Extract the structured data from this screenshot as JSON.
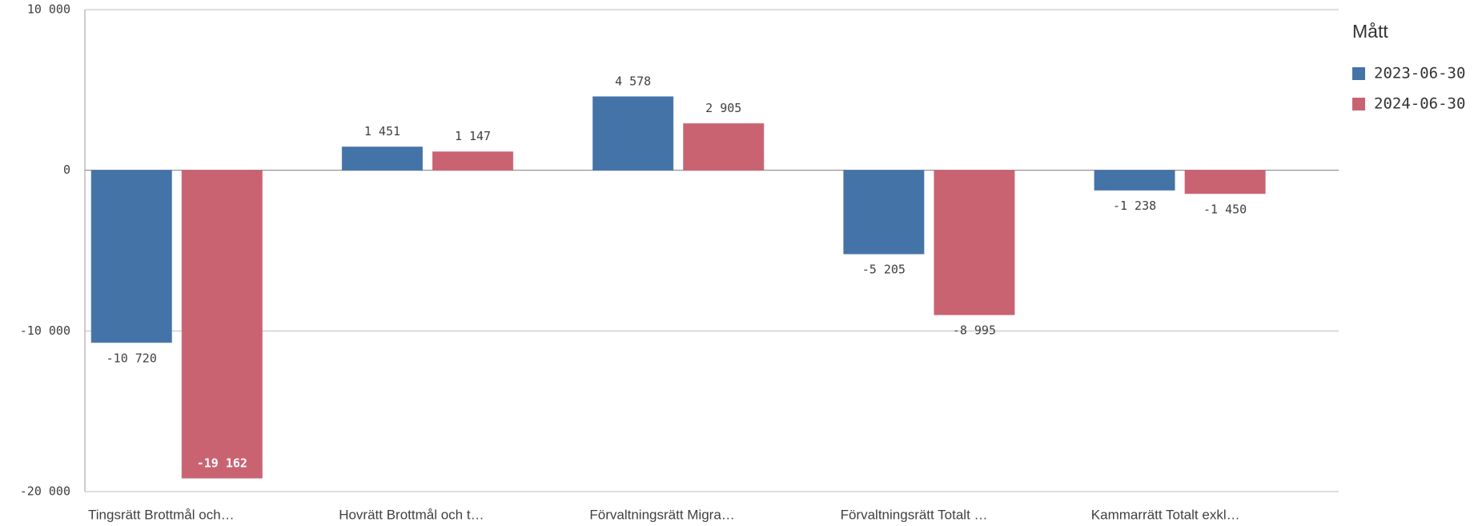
{
  "chart_data": {
    "type": "bar",
    "categories": [
      "Tingsrätt Brottmål och…",
      "Hovrätt Brottmål och t…",
      "Förvaltningsrätt Migra…",
      "Förvaltningsrätt Totalt …",
      "Kammarrätt Totalt exkl…"
    ],
    "series": [
      {
        "name": "2023-06-30",
        "color": "#4473a8",
        "values": [
          -10720,
          1451,
          4578,
          -5205,
          -1238
        ],
        "value_labels": [
          "-10 720",
          "1 451",
          "4 578",
          "-5 205",
          "-1 238"
        ]
      },
      {
        "name": "2024-06-30",
        "color": "#c96372",
        "values": [
          -19162,
          1147,
          2905,
          -8995,
          -1450
        ],
        "value_labels": [
          "-19 162",
          "1 147",
          "2 905",
          "-8 995",
          "-1 450"
        ]
      }
    ],
    "ylim": [
      -20000,
      10000
    ],
    "yticks": [
      {
        "value": -20000,
        "label": "-20 000"
      },
      {
        "value": -10000,
        "label": "-10 000"
      },
      0,
      {
        "value": 10000,
        "label": "10 000"
      }
    ],
    "grid": true,
    "legend": {
      "title": "Mått",
      "position": "right"
    }
  }
}
